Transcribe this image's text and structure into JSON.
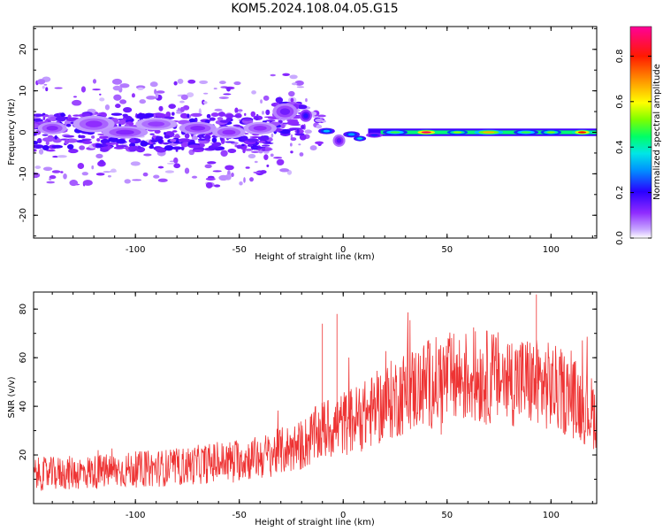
{
  "title": "KOM5.2024.108.04.05.G15",
  "chart_data": [
    {
      "type": "heatmap",
      "xlabel": "Height of straight line (km)",
      "ylabel": "Frequency (Hz)",
      "xlim": [
        -149,
        122
      ],
      "ylim": [
        -25.5,
        25.5
      ],
      "xticks": [
        -100,
        -50,
        0,
        50,
        100
      ],
      "yticks": [
        -20,
        -10,
        0,
        10,
        20
      ],
      "colorbar": {
        "label": "Normalized spectral amplitude",
        "range": [
          0.0,
          0.93
        ],
        "ticks": [
          0.0,
          0.2,
          0.4,
          0.6,
          0.8
        ],
        "colormap": [
          "#ffffff",
          "#c8a8ff",
          "#8f2bff",
          "#3a00ff",
          "#0040ff",
          "#00d0ff",
          "#00ff66",
          "#7dff00",
          "#ffff00",
          "#ff9900",
          "#ff0000",
          "#ff00aa"
        ]
      },
      "blobs": [
        {
          "x": -140,
          "y": 1,
          "w": 14,
          "h": 3,
          "v": 0.18
        },
        {
          "x": -120,
          "y": 2,
          "w": 20,
          "h": 4,
          "v": 0.17
        },
        {
          "x": -105,
          "y": 0,
          "w": 22,
          "h": 3,
          "v": 0.18
        },
        {
          "x": -90,
          "y": 2,
          "w": 20,
          "h": 3,
          "v": 0.16
        },
        {
          "x": -70,
          "y": 1,
          "w": 18,
          "h": 3,
          "v": 0.18
        },
        {
          "x": -55,
          "y": 0,
          "w": 16,
          "h": 3,
          "v": 0.17
        },
        {
          "x": -40,
          "y": 1,
          "w": 16,
          "h": 3,
          "v": 0.17
        },
        {
          "x": -28,
          "y": 5,
          "w": 12,
          "h": 4,
          "v": 0.2
        },
        {
          "x": -18,
          "y": 4,
          "w": 6,
          "h": 3,
          "v": 0.28
        },
        {
          "x": -8,
          "y": 0.3,
          "w": 8,
          "h": 1.5,
          "v": 0.42
        },
        {
          "x": -2,
          "y": -2,
          "w": 6,
          "h": 3,
          "v": 0.22
        },
        {
          "x": 4,
          "y": -0.5,
          "w": 8,
          "h": 1.5,
          "v": 0.4
        },
        {
          "x": 8,
          "y": -1.5,
          "w": 6,
          "h": 1.3,
          "v": 0.45
        },
        {
          "x": 15,
          "y": -0.7,
          "w": 8,
          "h": 1.2,
          "v": 0.3
        },
        {
          "x": 25,
          "y": 0,
          "w": 12,
          "h": 1.2,
          "v": 0.55
        },
        {
          "x": 40,
          "y": 0,
          "w": 12,
          "h": 1.2,
          "v": 0.9
        },
        {
          "x": 55,
          "y": 0,
          "w": 10,
          "h": 1.1,
          "v": 0.62
        },
        {
          "x": 70,
          "y": 0,
          "w": 14,
          "h": 1.2,
          "v": 0.75
        },
        {
          "x": 88,
          "y": 0,
          "w": 12,
          "h": 1.2,
          "v": 0.55
        },
        {
          "x": 100,
          "y": 0,
          "w": 10,
          "h": 1.2,
          "v": 0.6
        },
        {
          "x": 115,
          "y": 0,
          "w": 10,
          "h": 1.2,
          "v": 0.85
        }
      ]
    },
    {
      "type": "line",
      "xlabel": "Height of straight line (km)",
      "ylabel": "SNR (v/v)",
      "xlim": [
        -149,
        122
      ],
      "ylim": [
        0,
        87
      ],
      "xticks": [
        -100,
        -50,
        0,
        50,
        100
      ],
      "yticks": [
        20,
        40,
        60,
        80
      ],
      "color": "#ee3333",
      "trend": {
        "x": [
          -149,
          -120,
          -100,
          -80,
          -60,
          -40,
          -20,
          -10,
          0,
          10,
          20,
          30,
          40,
          50,
          60,
          70,
          80,
          90,
          100,
          110,
          122
        ],
        "y": [
          12,
          13,
          14,
          15,
          17,
          19,
          24,
          30,
          33,
          36,
          41,
          46,
          49,
          51,
          52,
          52,
          51,
          50,
          48,
          44,
          36
        ]
      },
      "notable_peaks": [
        {
          "x": -10,
          "y": 74
        },
        {
          "x": -3,
          "y": 78
        },
        {
          "x": 93,
          "y": 86
        }
      ]
    }
  ]
}
